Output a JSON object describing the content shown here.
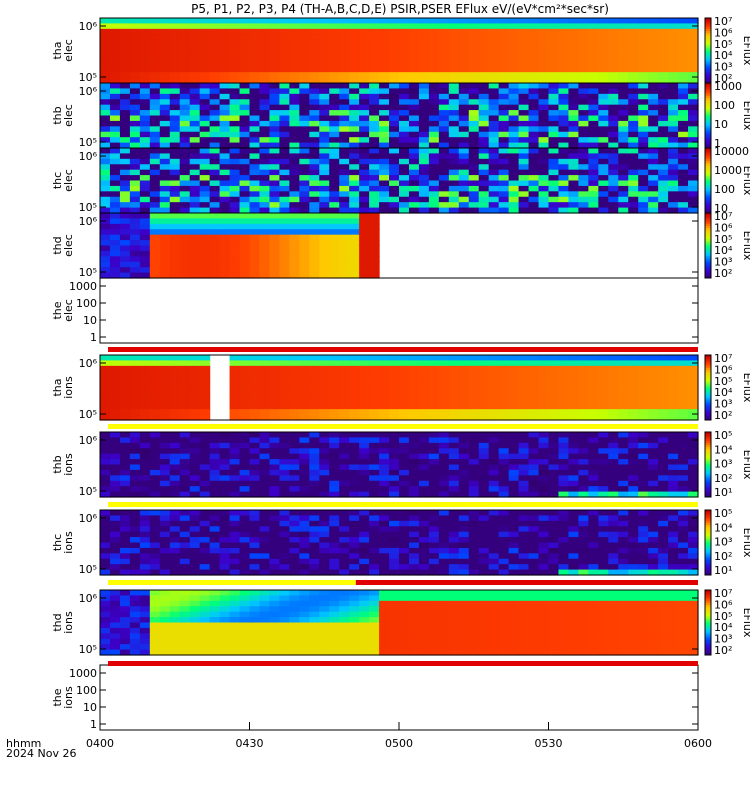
{
  "title": "P5, P1, P2, P3, P4 (TH-A,B,C,D,E) PSIR,PSER EFlux eV/(eV*cm²*sec*sr)",
  "chart_data": {
    "type": "heatmap",
    "x_tick_labels": [
      "0400",
      "0430",
      "0500",
      "0530",
      "0600"
    ],
    "x_range": [
      "0400",
      "0600"
    ],
    "x_label_line1": "hhmm",
    "x_label_line2": "2024 Nov 26",
    "panels": [
      {
        "id": "tha_elec",
        "label1": "tha",
        "label2": "elec",
        "kind": "spectrogram",
        "pattern": "full",
        "yticks": [
          "10⁶",
          "10⁵"
        ],
        "colorbar": {
          "label": "EFlux",
          "ticks": [
            "10⁷",
            "10⁶",
            "10⁵",
            "10⁴",
            "10³",
            "10²"
          ]
        }
      },
      {
        "id": "thb_elec",
        "label1": "thb",
        "label2": "elec",
        "kind": "spectrogram",
        "pattern": "noise",
        "yticks": [
          "10⁶",
          "10⁵"
        ],
        "colorbar": {
          "label": "EFlux",
          "ticks": [
            "1000",
            "100",
            "10",
            "1"
          ]
        }
      },
      {
        "id": "thc_elec",
        "label1": "thc",
        "label2": "elec",
        "kind": "spectrogram",
        "pattern": "noise",
        "yticks": [
          "10⁶",
          "10⁵"
        ],
        "colorbar": {
          "label": "EFlux",
          "ticks": [
            "10000",
            "1000",
            "100",
            "10"
          ]
        }
      },
      {
        "id": "thd_elec",
        "label1": "thd",
        "label2": "elec",
        "kind": "spectrogram",
        "pattern": "partial",
        "yticks": [
          "10⁶",
          "10⁵"
        ],
        "colorbar": {
          "label": "EFlux",
          "ticks": [
            "10⁷",
            "10⁶",
            "10⁵",
            "10⁴",
            "10³",
            "10²"
          ]
        }
      },
      {
        "id": "the_elec",
        "label1": "the",
        "label2": "elec",
        "kind": "empty",
        "yticks": [
          "1000",
          "100",
          "10",
          "1"
        ]
      },
      {
        "id": "tha_ions",
        "label1": "tha",
        "label2": "ions",
        "kind": "spectrogram",
        "pattern": "full_gap",
        "yticks": [
          "10⁶",
          "10⁵"
        ],
        "colorbar": {
          "label": "EFlux",
          "ticks": [
            "10⁷",
            "10⁶",
            "10⁵",
            "10⁴",
            "10³",
            "10²"
          ]
        }
      },
      {
        "id": "thb_ions",
        "label1": "thb",
        "label2": "ions",
        "kind": "spectrogram",
        "pattern": "sparse_late",
        "yticks": [
          "10⁶",
          "10⁵"
        ],
        "colorbar": {
          "label": "EFlux",
          "ticks": [
            "10⁵",
            "10⁴",
            "10³",
            "10²",
            "10¹"
          ]
        }
      },
      {
        "id": "thc_ions",
        "label1": "thc",
        "label2": "ions",
        "kind": "spectrogram",
        "pattern": "sparse_late",
        "yticks": [
          "10⁶",
          "10⁵"
        ],
        "colorbar": {
          "label": "EFlux",
          "ticks": [
            "10⁵",
            "10⁴",
            "10³",
            "10²",
            "10¹"
          ]
        }
      },
      {
        "id": "thd_ions",
        "label1": "thd",
        "label2": "ions",
        "kind": "spectrogram",
        "pattern": "partial_ions",
        "yticks": [
          "10⁶",
          "10⁵"
        ],
        "colorbar": {
          "label": "EFlux",
          "ticks": [
            "10⁷",
            "10⁶",
            "10⁵",
            "10⁴",
            "10³",
            "10²"
          ]
        }
      },
      {
        "id": "the_ions",
        "label1": "the",
        "label2": "ions",
        "kind": "empty",
        "yticks": [
          "1000",
          "100",
          "10",
          "1"
        ]
      }
    ]
  }
}
